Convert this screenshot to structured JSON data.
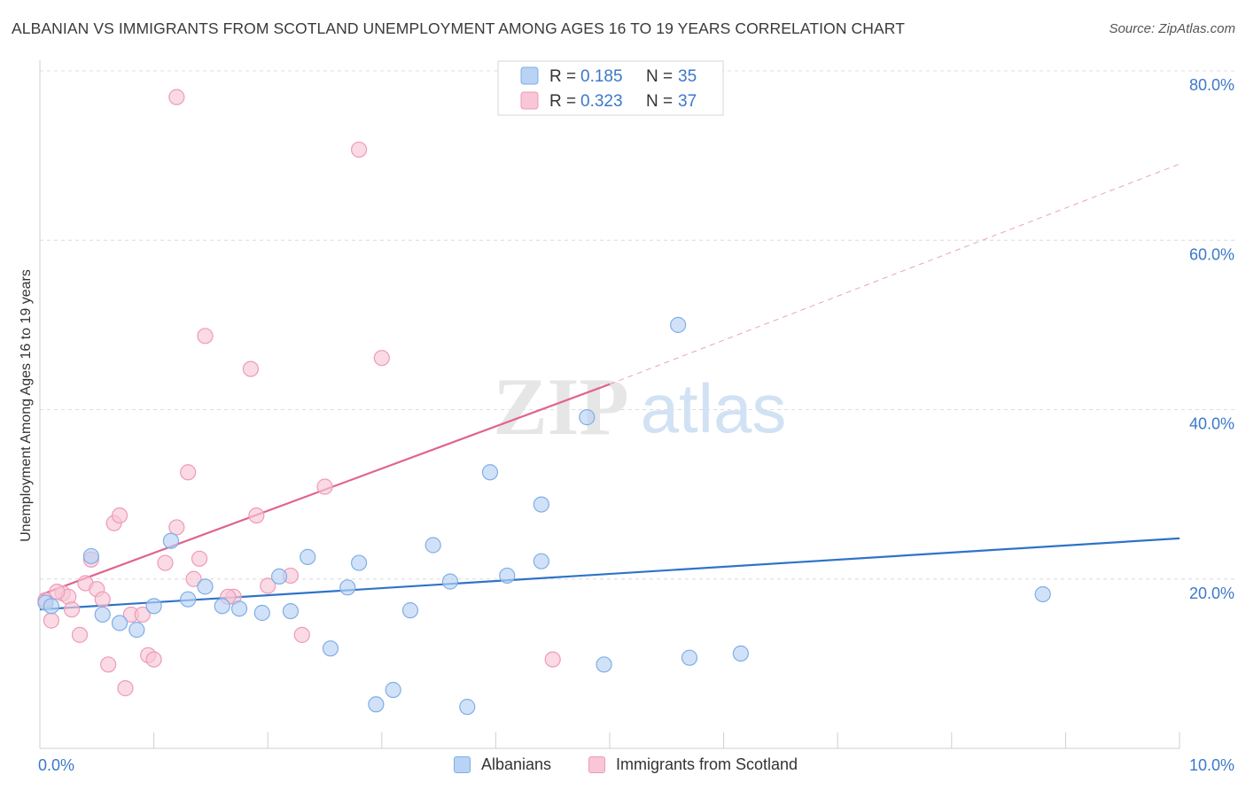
{
  "header": {
    "title": "ALBANIAN VS IMMIGRANTS FROM SCOTLAND UNEMPLOYMENT AMONG AGES 16 TO 19 YEARS CORRELATION CHART",
    "source": "Source: ZipAtlas.com"
  },
  "watermark": {
    "zip": "ZIP",
    "atlas": "atlas"
  },
  "colors": {
    "blue_fill": "#b8d3f5",
    "blue_stroke": "#7faee6",
    "blue_line": "#2f73c9",
    "pink_fill": "#f8c6d6",
    "pink_stroke": "#ef9bb6",
    "pink_line": "#e0648e",
    "axis_tick_text": "#3b78c9",
    "grid": "#dcdcdc"
  },
  "stats_legend": [
    {
      "r_label": "R = ",
      "r_value": "0.185",
      "n_label": "N = ",
      "n_value": "35",
      "color": "blue"
    },
    {
      "r_label": "R = ",
      "r_value": "0.323",
      "n_label": "N = ",
      "n_value": "37",
      "color": "pink"
    }
  ],
  "chart_data": {
    "type": "scatter",
    "title": "ALBANIAN VS IMMIGRANTS FROM SCOTLAND UNEMPLOYMENT AMONG AGES 16 TO 19 YEARS CORRELATION CHART",
    "xlabel": "",
    "ylabel": "Unemployment Among Ages 16 to 19 years",
    "xlim": [
      0,
      10
    ],
    "ylim": [
      0,
      80
    ],
    "x_tick_labels": [
      "0.0%",
      "10.0%"
    ],
    "y_tick_labels": [
      "20.0%",
      "40.0%",
      "60.0%",
      "80.0%"
    ],
    "y_ticks": [
      20,
      40,
      60,
      80
    ],
    "grid": true,
    "legend_position": "bottom",
    "series": [
      {
        "name": "Albanians",
        "color": "blue",
        "trend": {
          "x0": 0,
          "y0": 16.4,
          "x1": 10,
          "y1": 24.8,
          "dashed_to": null
        },
        "points": [
          [
            0.05,
            17.2
          ],
          [
            0.1,
            16.8
          ],
          [
            0.45,
            22.7
          ],
          [
            0.55,
            15.8
          ],
          [
            0.7,
            14.8
          ],
          [
            0.85,
            14.0
          ],
          [
            1.0,
            16.8
          ],
          [
            1.15,
            24.5
          ],
          [
            1.3,
            17.6
          ],
          [
            1.45,
            19.1
          ],
          [
            1.6,
            16.8
          ],
          [
            1.75,
            16.5
          ],
          [
            1.95,
            16.0
          ],
          [
            2.1,
            20.3
          ],
          [
            2.2,
            16.2
          ],
          [
            2.35,
            22.6
          ],
          [
            2.55,
            11.8
          ],
          [
            2.7,
            19.0
          ],
          [
            2.8,
            21.9
          ],
          [
            2.95,
            5.2
          ],
          [
            3.1,
            6.9
          ],
          [
            3.25,
            16.3
          ],
          [
            3.45,
            24.0
          ],
          [
            3.6,
            19.7
          ],
          [
            3.75,
            4.9
          ],
          [
            3.95,
            32.6
          ],
          [
            4.1,
            20.4
          ],
          [
            4.4,
            28.8
          ],
          [
            4.4,
            22.1
          ],
          [
            4.8,
            39.1
          ],
          [
            4.95,
            9.9
          ],
          [
            5.6,
            50.0
          ],
          [
            5.7,
            10.7
          ],
          [
            6.15,
            11.2
          ],
          [
            8.8,
            18.2
          ]
        ]
      },
      {
        "name": "Immigrants from Scotland",
        "color": "pink",
        "trend": {
          "x0": 0,
          "y0": 18.1,
          "x1": 5.0,
          "y1": 43.0,
          "dashed_to": {
            "x": 10,
            "y": 69.0
          }
        },
        "points": [
          [
            0.05,
            17.5
          ],
          [
            0.1,
            15.1
          ],
          [
            0.2,
            18.3
          ],
          [
            0.25,
            17.9
          ],
          [
            0.28,
            16.4
          ],
          [
            0.35,
            13.4
          ],
          [
            0.4,
            19.5
          ],
          [
            0.45,
            22.3
          ],
          [
            0.5,
            18.8
          ],
          [
            0.55,
            17.6
          ],
          [
            0.6,
            9.9
          ],
          [
            0.65,
            26.6
          ],
          [
            0.7,
            27.5
          ],
          [
            0.75,
            7.1
          ],
          [
            0.8,
            15.8
          ],
          [
            0.9,
            15.8
          ],
          [
            0.95,
            11.0
          ],
          [
            1.0,
            10.5
          ],
          [
            1.1,
            21.9
          ],
          [
            1.2,
            26.1
          ],
          [
            1.3,
            32.6
          ],
          [
            1.35,
            20.0
          ],
          [
            1.4,
            22.4
          ],
          [
            1.45,
            48.7
          ],
          [
            1.7,
            17.9
          ],
          [
            1.85,
            44.8
          ],
          [
            1.9,
            27.5
          ],
          [
            2.0,
            19.2
          ],
          [
            2.2,
            20.4
          ],
          [
            2.3,
            13.4
          ],
          [
            2.5,
            30.9
          ],
          [
            2.8,
            70.7
          ],
          [
            3.0,
            46.1
          ],
          [
            4.5,
            10.5
          ],
          [
            1.2,
            76.9
          ],
          [
            1.65,
            17.9
          ],
          [
            0.15,
            18.5
          ]
        ]
      }
    ]
  }
}
